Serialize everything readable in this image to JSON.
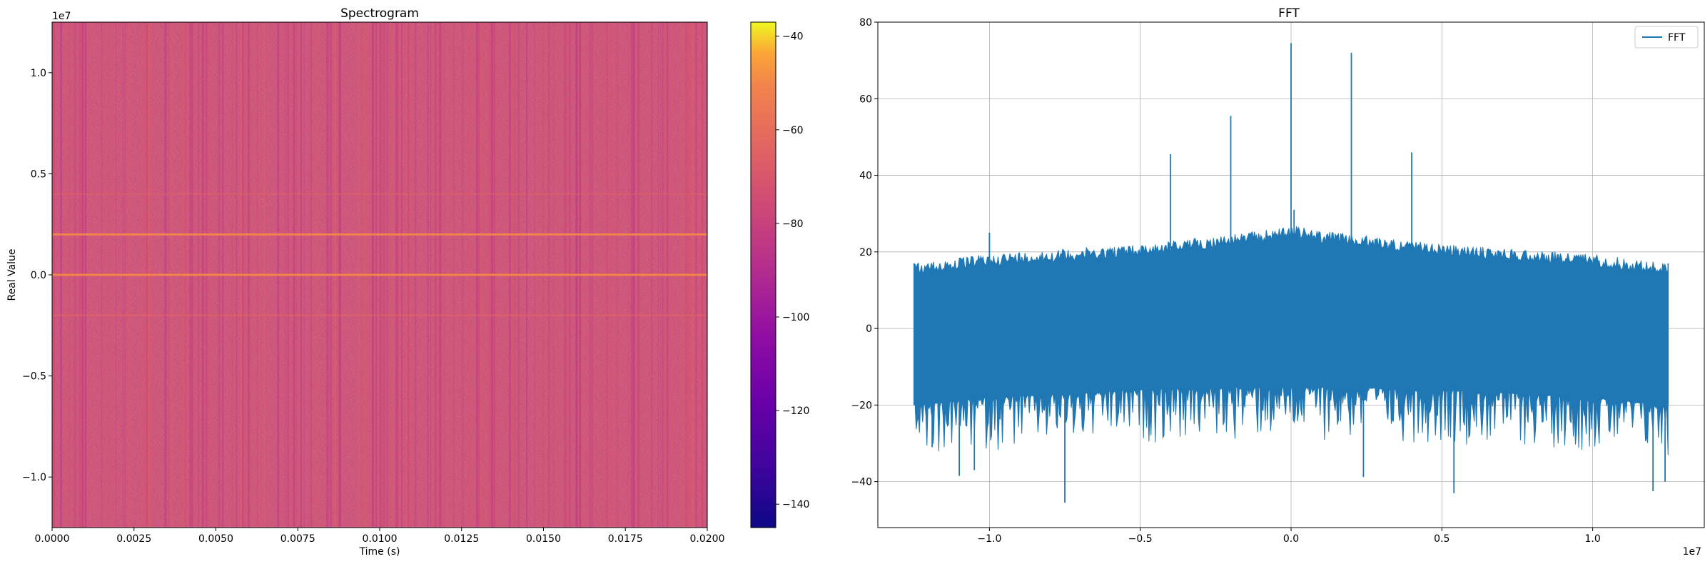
{
  "chart_data": [
    {
      "type": "heatmap",
      "title": "Spectrogram",
      "xlabel": "Time (s)",
      "ylabel": "Real Value",
      "x_range": [
        0.0,
        0.02
      ],
      "y_range": [
        -12500000,
        12500000
      ],
      "y_offset_label": "1e7",
      "x_ticks": [
        {
          "value": 0.0,
          "label": "0.0000"
        },
        {
          "value": 0.0025,
          "label": "0.0025"
        },
        {
          "value": 0.005,
          "label": "0.0050"
        },
        {
          "value": 0.0075,
          "label": "0.0075"
        },
        {
          "value": 0.01,
          "label": "0.0100"
        },
        {
          "value": 0.0125,
          "label": "0.0125"
        },
        {
          "value": 0.015,
          "label": "0.0150"
        },
        {
          "value": 0.0175,
          "label": "0.0175"
        },
        {
          "value": 0.02,
          "label": "0.0200"
        }
      ],
      "y_ticks": [
        {
          "value": 10000000,
          "label": "1.0"
        },
        {
          "value": 5000000,
          "label": "0.5"
        },
        {
          "value": 0,
          "label": "0.0"
        },
        {
          "value": -5000000,
          "label": "−0.5"
        },
        {
          "value": -10000000,
          "label": "−1.0"
        }
      ],
      "colormap": "plasma",
      "background_level_db": -75,
      "strong_tones": [
        {
          "frequency": 2000000,
          "level_db": -50
        },
        {
          "frequency": 0,
          "level_db": -50
        }
      ],
      "weak_tones": [
        {
          "frequency": 4000000,
          "level_db": -65
        },
        {
          "frequency": -2000000,
          "level_db": -62
        }
      ],
      "colorbar": {
        "range": [
          -145,
          -37
        ],
        "ticks": [
          {
            "value": -40,
            "label": "−40"
          },
          {
            "value": -60,
            "label": "−60"
          },
          {
            "value": -80,
            "label": "−80"
          },
          {
            "value": -100,
            "label": "−100"
          },
          {
            "value": -120,
            "label": "−120"
          },
          {
            "value": -140,
            "label": "−140"
          }
        ]
      }
    },
    {
      "type": "line",
      "title": "FFT",
      "xlabel": "",
      "ylabel": "",
      "x_range": [
        -13700000,
        13700000
      ],
      "y_range": [
        -52,
        80
      ],
      "x_offset_label": "1e7",
      "grid": true,
      "legend_position": "top-right",
      "series": [
        {
          "name": "FFT",
          "color": "#1f77b4"
        }
      ],
      "data_extent": [
        -12500000,
        12500000
      ],
      "envelope_upper": {
        "x": [
          -12500000,
          -10000000,
          -5000000,
          -1000000,
          0,
          1000000,
          5000000,
          10000000,
          12500000
        ],
        "y": [
          17,
          19.5,
          22,
          25.5,
          27,
          25.5,
          22,
          19.5,
          17
        ]
      },
      "envelope_lower": {
        "x": [
          -12500000,
          -10000000,
          -5000000,
          0,
          5000000,
          10000000,
          12500000
        ],
        "y": [
          -20,
          -18,
          -16,
          -15,
          -16,
          -18,
          -20
        ]
      },
      "peaks": [
        {
          "x": 0,
          "y": 74.5
        },
        {
          "x": 2000000,
          "y": 72
        },
        {
          "x": -2000000,
          "y": 55.5
        },
        {
          "x": 4000000,
          "y": 46
        },
        {
          "x": -4000000,
          "y": 45.5
        },
        {
          "x": -10000000,
          "y": 25
        },
        {
          "x": 100000,
          "y": 31
        }
      ],
      "dips": [
        {
          "x": -7500000,
          "y": -45.5
        },
        {
          "x": 5400000,
          "y": -43
        },
        {
          "x": 12000000,
          "y": -42.5
        },
        {
          "x": 12400000,
          "y": -40
        },
        {
          "x": 2400000,
          "y": -38.8
        },
        {
          "x": -11000000,
          "y": -38.5
        },
        {
          "x": -10500000,
          "y": -37
        },
        {
          "x": -11900000,
          "y": -31
        }
      ],
      "x_ticks": [
        {
          "value": -10000000,
          "label": "−1.0"
        },
        {
          "value": -5000000,
          "label": "−0.5"
        },
        {
          "value": 0,
          "label": "0.0"
        },
        {
          "value": 5000000,
          "label": "0.5"
        },
        {
          "value": 10000000,
          "label": "1.0"
        }
      ],
      "y_ticks": [
        {
          "value": 80,
          "label": "80"
        },
        {
          "value": 60,
          "label": "60"
        },
        {
          "value": 40,
          "label": "40"
        },
        {
          "value": 20,
          "label": "20"
        },
        {
          "value": 0,
          "label": "0"
        },
        {
          "value": -20,
          "label": "−20"
        },
        {
          "value": -40,
          "label": "−40"
        }
      ]
    }
  ]
}
